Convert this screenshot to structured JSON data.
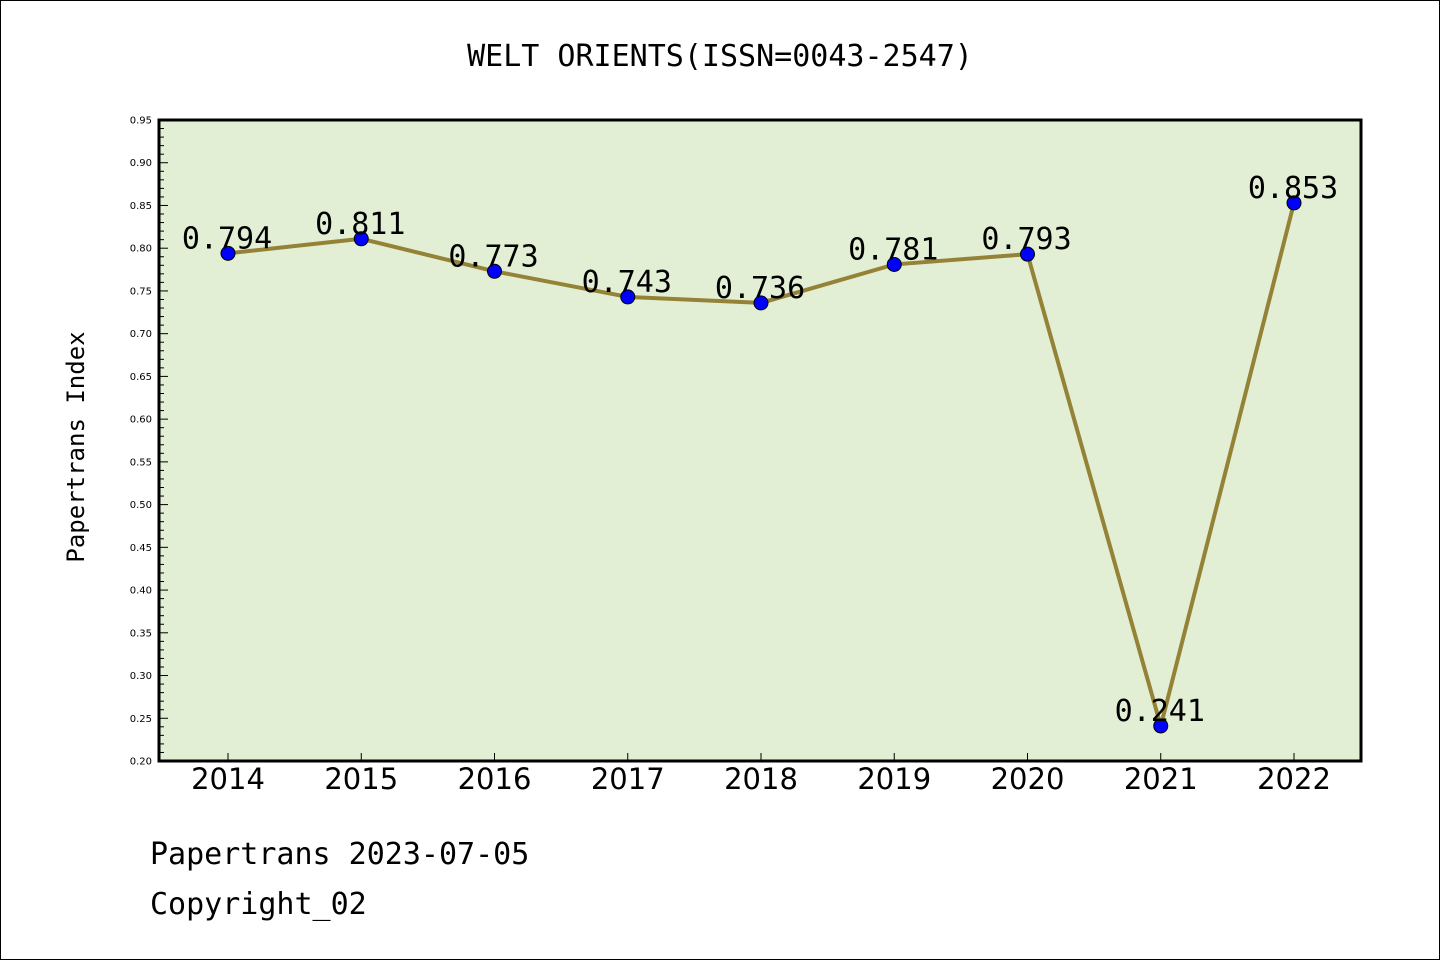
{
  "chart_data": {
    "type": "line",
    "title": "WELT ORIENTS(ISSN=0043-2547)",
    "xlabel": "",
    "ylabel": "Papertrans Index",
    "categories": [
      "2014",
      "2015",
      "2016",
      "2017",
      "2018",
      "2019",
      "2020",
      "2021",
      "2022"
    ],
    "values": [
      0.794,
      0.811,
      0.773,
      0.743,
      0.736,
      0.781,
      0.793,
      0.241,
      0.853
    ],
    "data_labels": [
      "0.794",
      "0.811",
      "0.773",
      "0.743",
      "0.736",
      "0.781",
      "0.793",
      "0.241",
      "0.853"
    ],
    "ylim": [
      0.2,
      0.95
    ],
    "yticks": [
      "0.20",
      "0.25",
      "0.30",
      "0.35",
      "0.40",
      "0.45",
      "0.50",
      "0.55",
      "0.60",
      "0.65",
      "0.70",
      "0.75",
      "0.80",
      "0.85",
      "0.90",
      "0.95"
    ],
    "grid": false,
    "legend": "none",
    "colors": {
      "plot_background": "#e2efd5",
      "line": "#948237",
      "marker": "#0000ff"
    }
  },
  "footer": {
    "line1": "Papertrans 2023-07-05",
    "line2": "Copyright_02"
  }
}
